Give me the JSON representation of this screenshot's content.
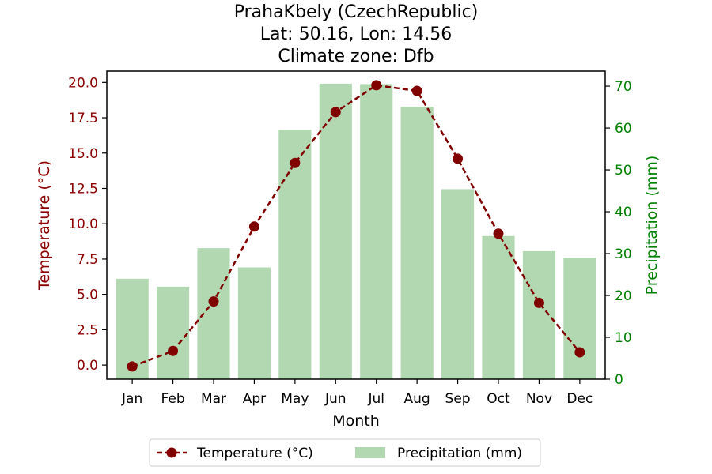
{
  "chart_data": {
    "type": "bar+line",
    "title_lines": [
      "PrahaKbely (CzechRepublic)",
      "Lat: 50.16, Lon: 14.56",
      "Climate zone: Dfb"
    ],
    "xlabel": "Month",
    "ylabel_left": "Temperature (°C)",
    "ylabel_right": "Precipitation (mm)",
    "categories": [
      "Jan",
      "Feb",
      "Mar",
      "Apr",
      "May",
      "Jun",
      "Jul",
      "Aug",
      "Sep",
      "Oct",
      "Nov",
      "Dec"
    ],
    "ylim_left": [
      -1.0,
      20.8
    ],
    "ylim_right": [
      0,
      73.6
    ],
    "yticks_left": [
      "0.0",
      "2.5",
      "5.0",
      "7.5",
      "10.0",
      "12.5",
      "15.0",
      "17.5",
      "20.0"
    ],
    "yticks_right": [
      "0",
      "10",
      "20",
      "30",
      "40",
      "50",
      "60",
      "70"
    ],
    "grid": false,
    "legend_placement": "bottom-center",
    "series": [
      {
        "name": "Temperature (°C)",
        "kind": "line",
        "color": "#800000",
        "values": [
          -0.1,
          1.0,
          4.5,
          9.8,
          14.3,
          17.9,
          19.8,
          19.4,
          14.6,
          9.3,
          4.4,
          0.9
        ]
      },
      {
        "name": "Precipitation (mm)",
        "kind": "bar",
        "color": "#b2d8b2",
        "values": [
          24.0,
          22.1,
          31.3,
          26.7,
          59.6,
          70.6,
          70.5,
          65.1,
          45.4,
          34.2,
          30.6,
          29.0
        ]
      }
    ],
    "colors": {
      "left_axis": "#8b0000",
      "right_axis": "#008000",
      "text": "#000000"
    }
  }
}
